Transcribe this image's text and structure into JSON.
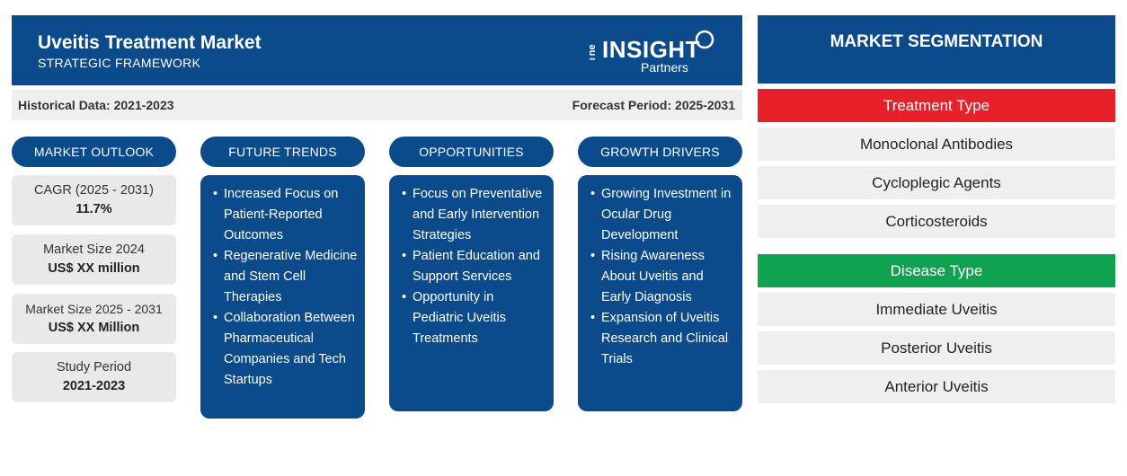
{
  "header": {
    "title": "Uveitis Treatment Market",
    "subtitle": "STRATEGIC FRAMEWORK",
    "logo": {
      "small": "The",
      "main": "INSIGHT",
      "sub": "Partners"
    }
  },
  "periods": {
    "historical": "Historical Data: 2021-2023",
    "forecast": "Forecast Period: 2025-2031"
  },
  "columns": {
    "outlook": {
      "heading": "MARKET OUTLOOK",
      "stats": [
        {
          "label": "CAGR (2025 - 2031)",
          "value": "11.7%"
        },
        {
          "label": "Market Size 2024",
          "value": "US$ XX million"
        },
        {
          "label": "Market Size 2025 - 2031",
          "value": "US$ XX Million"
        },
        {
          "label": "Study Period",
          "value": "2021-2023"
        }
      ]
    },
    "trends": {
      "heading": "FUTURE TRENDS",
      "items": [
        "Increased Focus on Patient-Reported Outcomes",
        "Regenerative Medicine and Stem Cell Therapies",
        "Collaboration Between Pharmaceutical Companies and Tech Startups"
      ]
    },
    "opportunities": {
      "heading": "OPPORTUNITIES",
      "items": [
        "Focus on Preventative and Early Intervention Strategies",
        "Patient Education and Support Services",
        "Opportunity in Pediatric Uveitis Treatments"
      ]
    },
    "drivers": {
      "heading": "GROWTH DRIVERS",
      "items": [
        "Growing Investment in Ocular Drug Development",
        "Rising Awareness About Uveitis and Early Diagnosis",
        "Expansion of Uveitis Research and Clinical Trials"
      ]
    }
  },
  "segmentation": {
    "heading": "MARKET SEGMENTATION",
    "groups": [
      {
        "title": "Treatment Type",
        "color": "#e8202a",
        "items": [
          "Monoclonal Antibodies",
          "Cycloplegic Agents",
          "Corticosteroids"
        ]
      },
      {
        "title": "Disease Type",
        "color": "#0fa351",
        "items": [
          "Immediate Uveitis",
          "Posterior Uveitis",
          "Anterior Uveitis"
        ]
      }
    ]
  },
  "colors": {
    "primary": "#0b4a8b",
    "panel_gray": "#efefef",
    "stat_gray": "#e9e9e9"
  }
}
